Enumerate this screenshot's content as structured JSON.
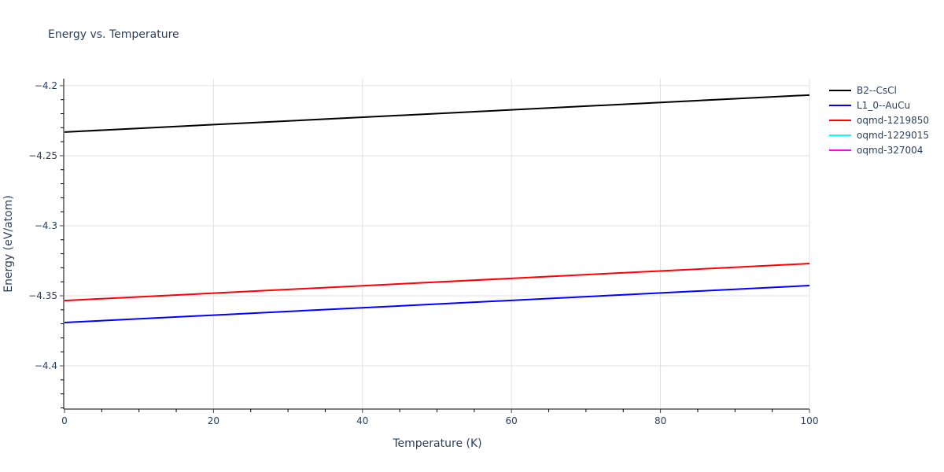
{
  "chart_data": {
    "type": "line",
    "title": "Energy vs. Temperature",
    "xlabel": "Temperature (K)",
    "ylabel": "Energy (eV/atom)",
    "xlim": [
      0,
      100
    ],
    "ylim": [
      -4.4303,
      -4.195
    ],
    "xticks": [
      0,
      20,
      40,
      60,
      80,
      100
    ],
    "xtick_labels": [
      "0",
      "20",
      "40",
      "60",
      "80",
      "100"
    ],
    "yticks": [
      -4.2,
      -4.25,
      -4.3,
      -4.35,
      -4.4
    ],
    "ytick_labels": [
      "−4.2",
      "−4.25",
      "−4.3",
      "−4.35",
      "−4.4"
    ],
    "grid": true,
    "legend_position": "right",
    "series": [
      {
        "name": "B2--CsCl",
        "color": "#000000",
        "x": [
          0,
          100
        ],
        "y": [
          -4.2331,
          -4.2067
        ]
      },
      {
        "name": "L1_0--AuCu",
        "color": "#0000ff",
        "x": [
          0,
          100
        ],
        "y": [
          -4.3691,
          -4.3427
        ]
      },
      {
        "name": "oqmd-1219850",
        "color": "#ff0000",
        "x": [
          0,
          100
        ],
        "y": [
          -4.3534,
          -4.327
        ]
      },
      {
        "name": "oqmd-1229015",
        "color": "#00ffff",
        "x": [],
        "y": []
      },
      {
        "name": "oqmd-327004",
        "color": "#ff00ff",
        "x": [],
        "y": []
      }
    ]
  }
}
